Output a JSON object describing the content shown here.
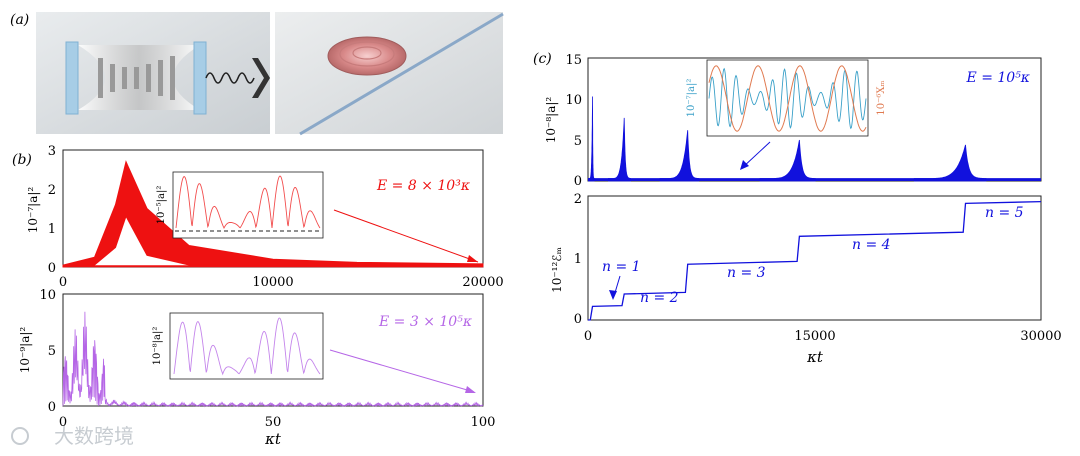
{
  "panel_labels": {
    "a": "(a)",
    "b": "(b)",
    "c": "(c)"
  },
  "watermark": "大数跨境",
  "colors": {
    "red": "#ee1111",
    "violet": "#b566e6",
    "blue": "#1111dd",
    "cyan": "#3aa0c8",
    "orange": "#e07a50",
    "axis": "#222222"
  },
  "chart_data": [
    {
      "id": "b-top",
      "type": "line",
      "annotation": "E = 8 × 10³κ",
      "ylabel": "10⁻⁷|a|²",
      "xlim": [
        0,
        20000
      ],
      "ylim": [
        0,
        3
      ],
      "xticks": [
        "0",
        "10000",
        "20000"
      ],
      "yticks": [
        "0",
        "1",
        "2",
        "3"
      ],
      "series": [
        {
          "name": "|a|² envelope",
          "x": [
            0,
            1500,
            2500,
            3000,
            4000,
            6000,
            10000,
            14000,
            20000
          ],
          "upper": [
            0.05,
            0.25,
            1.6,
            2.7,
            1.5,
            0.55,
            0.2,
            0.12,
            0.08
          ],
          "lower": [
            0.0,
            0.05,
            0.5,
            1.3,
            0.3,
            0.05,
            0.02,
            0.01,
            0.01
          ]
        }
      ],
      "inset": {
        "ylabel": "10⁻⁵|a|²"
      }
    },
    {
      "id": "b-bottom",
      "type": "line",
      "annotation": "E = 3 × 10⁵κ",
      "ylabel": "10⁻⁹|a|²",
      "xlabel": "κt",
      "xlim": [
        0,
        100
      ],
      "ylim": [
        0,
        10
      ],
      "xticks": [
        "0",
        "50",
        "100"
      ],
      "yticks": [
        "0",
        "5",
        "10"
      ],
      "inset": {
        "ylabel": "10⁻⁸|a|²"
      }
    },
    {
      "id": "c-top",
      "type": "line",
      "annotation": "E = 10⁵κ",
      "ylabel": "10⁻⁸|a|²",
      "xlim": [
        0,
        30000
      ],
      "ylim": [
        0,
        15
      ],
      "yticks": [
        "0",
        "5",
        "10",
        "15"
      ],
      "peaks": [
        {
          "x": 300,
          "y": 10.3
        },
        {
          "x": 2400,
          "y": 7.7
        },
        {
          "x": 6600,
          "y": 6.2
        },
        {
          "x": 14000,
          "y": 5.0
        },
        {
          "x": 25000,
          "y": 4.4
        }
      ],
      "inset": {
        "left_label": "10⁻⁷|a|²",
        "right_label": "10⁻⁶Xₘ"
      }
    },
    {
      "id": "c-bottom",
      "type": "line",
      "ylabel": "10⁻¹²ℰₘ",
      "xlabel": "κt",
      "xlim": [
        0,
        30000
      ],
      "ylim": [
        0,
        2
      ],
      "xticks": [
        "0",
        "15000",
        "30000"
      ],
      "yticks": [
        "0",
        "1",
        "2"
      ],
      "steps": [
        {
          "x": 0,
          "y": 0.0
        },
        {
          "x": 300,
          "y": 0.22
        },
        {
          "x": 2400,
          "y": 0.42
        },
        {
          "x": 6600,
          "y": 0.9
        },
        {
          "x": 14000,
          "y": 1.35
        },
        {
          "x": 25000,
          "y": 1.88
        }
      ],
      "step_labels": [
        "n = 1",
        "n = 2",
        "n = 3",
        "n = 4",
        "n = 5"
      ]
    }
  ]
}
